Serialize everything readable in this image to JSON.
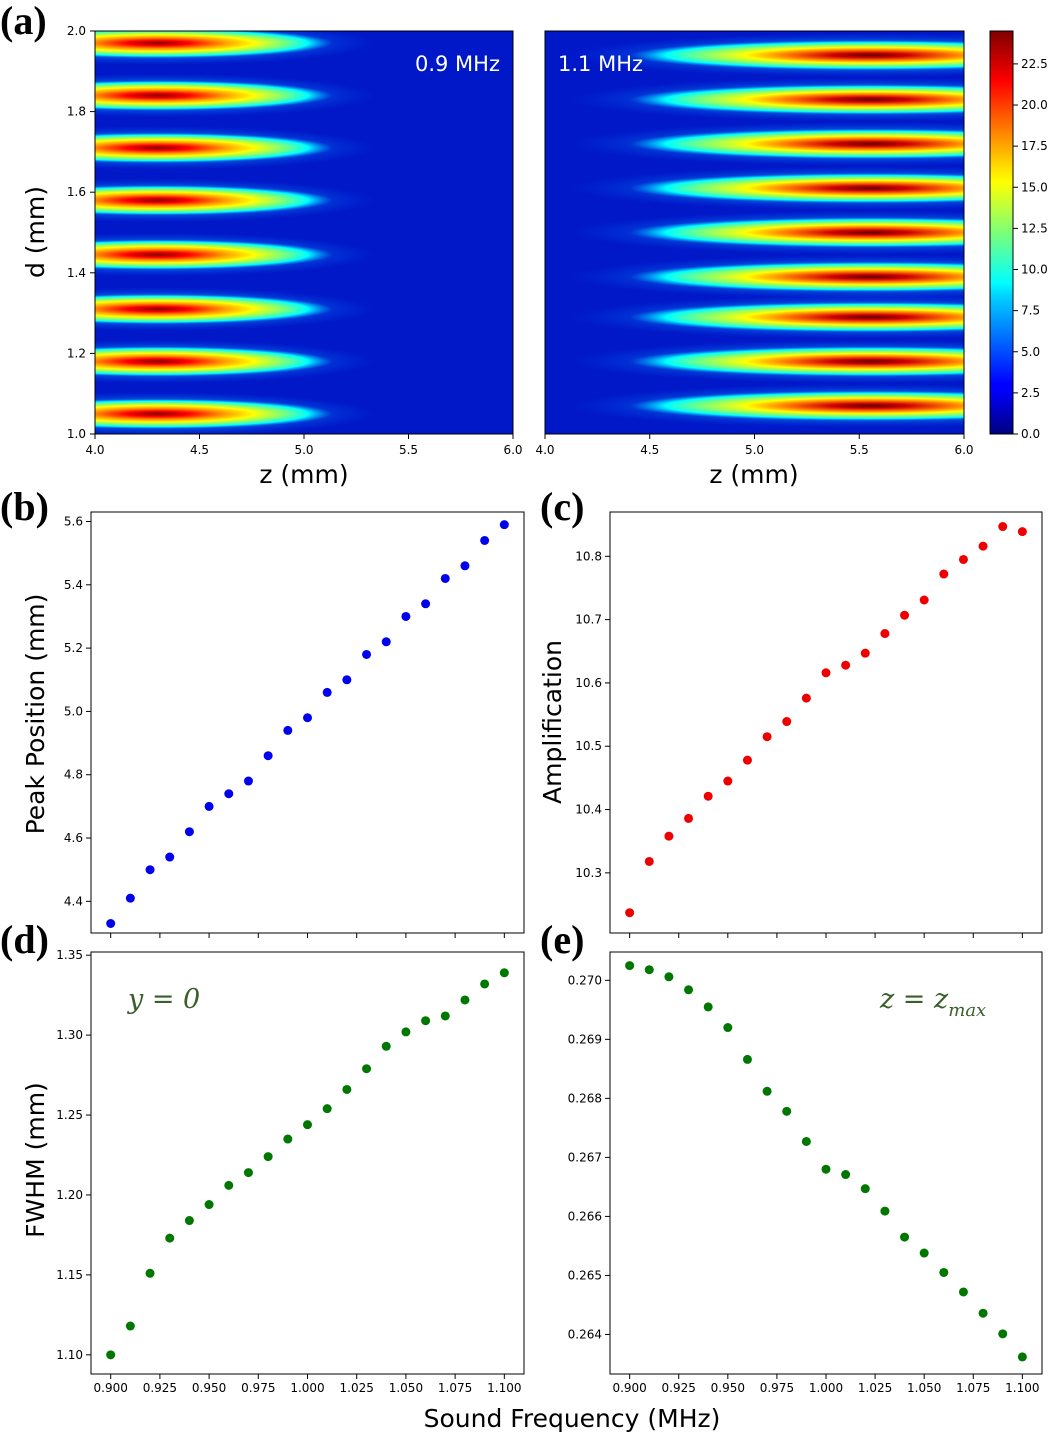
{
  "chart_data": [
    {
      "panel": "(a)",
      "type": "heatmap",
      "title": "0.9 MHz",
      "xlabel": "z (mm)",
      "ylabel": "d (mm)",
      "xlim": [
        4.0,
        6.0
      ],
      "ylim": [
        1.0,
        2.0
      ],
      "xticks": [
        "4.0",
        "4.5",
        "5.0",
        "5.5",
        "6.0"
      ],
      "yticks": [
        "1.0",
        "1.2",
        "1.4",
        "1.6",
        "1.8",
        "2.0"
      ],
      "band_d": [
        1.05,
        1.18,
        1.31,
        1.445,
        1.58,
        1.71,
        1.84,
        1.97
      ],
      "band_peak_z": 4.3,
      "band_peak_value": 22.5
    },
    {
      "panel": "(a)",
      "type": "heatmap",
      "title": "1.1 MHz",
      "xlabel": "z (mm)",
      "xlim": [
        4.0,
        6.0
      ],
      "ylim": [
        1.0,
        2.0
      ],
      "xticks": [
        "4.0",
        "4.5",
        "5.0",
        "5.5",
        "6.0"
      ],
      "band_d": [
        1.07,
        1.18,
        1.29,
        1.39,
        1.5,
        1.61,
        1.72,
        1.83,
        1.94
      ],
      "band_peak_z": 5.55,
      "band_peak_value": 24.0,
      "colorbar": {
        "min": 0.0,
        "max": 24.5,
        "ticks": [
          "0.0",
          "2.5",
          "5.0",
          "7.5",
          "10.0",
          "12.5",
          "15.0",
          "17.5",
          "20.0",
          "22.5"
        ]
      }
    },
    {
      "panel": "(b)",
      "type": "scatter",
      "ylabel": "Peak Position (mm)",
      "color": "#0000ee",
      "x": [
        0.9,
        0.91,
        0.92,
        0.93,
        0.94,
        0.95,
        0.96,
        0.97,
        0.98,
        0.99,
        1.0,
        1.01,
        1.02,
        1.03,
        1.04,
        1.05,
        1.06,
        1.07,
        1.08,
        1.09,
        1.1
      ],
      "y": [
        4.33,
        4.41,
        4.5,
        4.54,
        4.62,
        4.7,
        4.74,
        4.78,
        4.86,
        4.94,
        4.98,
        5.06,
        5.1,
        5.18,
        5.22,
        5.3,
        5.34,
        5.42,
        5.46,
        5.54,
        5.59
      ],
      "xlim": [
        0.89,
        1.11
      ],
      "ylim": [
        4.3,
        5.63
      ],
      "yticks": [
        "4.4",
        "4.6",
        "4.8",
        "5.0",
        "5.2",
        "5.4",
        "5.6"
      ]
    },
    {
      "panel": "(c)",
      "type": "scatter",
      "ylabel": "Amplification",
      "color": "#ee0000",
      "x": [
        0.9,
        0.91,
        0.92,
        0.93,
        0.94,
        0.95,
        0.96,
        0.97,
        0.98,
        0.99,
        1.0,
        1.01,
        1.02,
        1.03,
        1.04,
        1.05,
        1.06,
        1.07,
        1.08,
        1.09,
        1.1
      ],
      "y": [
        10.237,
        10.318,
        10.358,
        10.386,
        10.421,
        10.445,
        10.478,
        10.515,
        10.539,
        10.576,
        10.616,
        10.628,
        10.647,
        10.678,
        10.707,
        10.731,
        10.772,
        10.795,
        10.816,
        10.847,
        10.839
      ],
      "xlim": [
        0.89,
        1.11
      ],
      "ylim": [
        10.205,
        10.87
      ],
      "yticks": [
        "10.3",
        "10.4",
        "10.5",
        "10.6",
        "10.7",
        "10.8"
      ]
    },
    {
      "panel": "(d)",
      "type": "scatter",
      "ylabel": "FWHM (mm)",
      "annotation": "y = 0",
      "color": "#007700",
      "x": [
        0.9,
        0.91,
        0.92,
        0.93,
        0.94,
        0.95,
        0.96,
        0.97,
        0.98,
        0.99,
        1.0,
        1.01,
        1.02,
        1.03,
        1.04,
        1.05,
        1.06,
        1.07,
        1.08,
        1.09,
        1.1
      ],
      "y": [
        1.1,
        1.118,
        1.151,
        1.173,
        1.184,
        1.194,
        1.206,
        1.214,
        1.224,
        1.235,
        1.244,
        1.254,
        1.266,
        1.279,
        1.293,
        1.302,
        1.309,
        1.312,
        1.322,
        1.332,
        1.339
      ],
      "xlim": [
        0.89,
        1.11
      ],
      "ylim": [
        1.088,
        1.352
      ],
      "xticks": [
        "0.900",
        "0.925",
        "0.950",
        "0.975",
        "1.000",
        "1.025",
        "1.050",
        "1.075",
        "1.100"
      ],
      "yticks": [
        "1.10",
        "1.15",
        "1.20",
        "1.25",
        "1.30",
        "1.35"
      ]
    },
    {
      "panel": "(e)",
      "type": "scatter",
      "annotation": "z = z",
      "annotation_sub": "max",
      "color": "#007700",
      "x": [
        0.9,
        0.91,
        0.92,
        0.93,
        0.94,
        0.95,
        0.96,
        0.97,
        0.98,
        0.99,
        1.0,
        1.01,
        1.02,
        1.03,
        1.04,
        1.05,
        1.06,
        1.07,
        1.08,
        1.09,
        1.1
      ],
      "y": [
        0.27025,
        0.27018,
        0.27006,
        0.26984,
        0.26955,
        0.2692,
        0.26866,
        0.26812,
        0.26778,
        0.26727,
        0.2668,
        0.26671,
        0.26647,
        0.26609,
        0.26565,
        0.26538,
        0.26505,
        0.26472,
        0.26436,
        0.26401,
        0.26362
      ],
      "xlim": [
        0.89,
        1.11
      ],
      "ylim": [
        0.26333,
        0.27048
      ],
      "xticks": [
        "0.900",
        "0.925",
        "0.950",
        "0.975",
        "1.000",
        "1.025",
        "1.050",
        "1.075",
        "1.100"
      ],
      "yticks": [
        "0.264",
        "0.265",
        "0.266",
        "0.267",
        "0.268",
        "0.269",
        "0.270"
      ],
      "xlabel": "Sound Frequency (MHz)"
    }
  ],
  "panel_letters": [
    "(a)",
    "(b)",
    "(c)",
    "(d)",
    "(e)"
  ]
}
